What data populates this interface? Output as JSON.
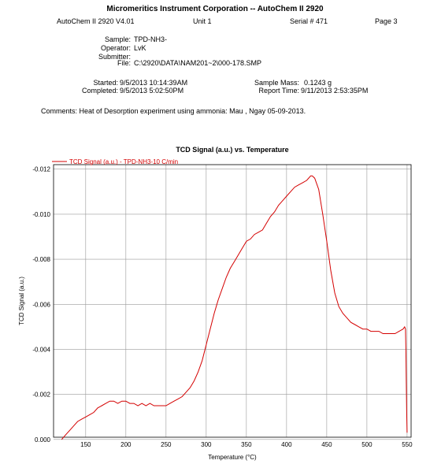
{
  "report": {
    "title": "Micromeritics Instrument Corporation -- AutoChem II 2920",
    "software": "AutoChem II 2920 V4.01",
    "unit": "Unit 1",
    "serial": "Serial # 471",
    "page": "Page 3"
  },
  "sample_info": {
    "sample_label": "Sample:",
    "sample_value": "TPD-NH3-",
    "operator_label": "Operator:",
    "operator_value": "LvK",
    "submitter_label": "Submitter:",
    "submitter_value": "",
    "file_label": "File:",
    "file_value": "C:\\2920\\DATA\\NAM201~2\\000-178.SMP"
  },
  "timing": {
    "started_label": "Started:",
    "started_value": "9/5/2013 10:14:39AM",
    "completed_label": "Completed:",
    "completed_value": "9/5/2013 5:02:50PM",
    "mass_label": "Sample Mass:",
    "mass_value": "0.1243 g",
    "report_label": "Report Time:",
    "report_value": "9/11/2013 2:53:35PM"
  },
  "comments": "Comments: Heat of Desorption experiment using ammonia: Mau , Ngay 05-09-2013.",
  "chart_data": {
    "type": "line",
    "title": "TCD Signal (a.u.) vs. Temperature",
    "xlabel": "Temperature (°C)",
    "ylabel": "TCD Signal (a.u.)",
    "xlim": [
      110,
      555
    ],
    "ylim": [
      0.0001,
      0.0122
    ],
    "y_reversed": true,
    "x_ticks": [
      150,
      200,
      250,
      300,
      350,
      400,
      450,
      500,
      550
    ],
    "y_ticks": [
      0.0,
      -0.002,
      -0.004,
      -0.006,
      -0.008,
      -0.01,
      -0.012
    ],
    "y_tick_labels": [
      "0.000",
      "-0.002",
      "-0.004",
      "-0.006",
      "-0.008",
      "-0.010",
      "-0.012"
    ],
    "grid": true,
    "legend_position": "top-left",
    "series": [
      {
        "name": "TCD Signal (a.u.) - TPD-NH3-10 C/min",
        "color": "#d40000",
        "x": [
          120,
          125,
          130,
          135,
          140,
          145,
          150,
          155,
          160,
          165,
          170,
          175,
          180,
          185,
          190,
          195,
          200,
          205,
          210,
          215,
          220,
          225,
          230,
          235,
          240,
          245,
          250,
          255,
          260,
          265,
          270,
          275,
          280,
          285,
          290,
          295,
          300,
          305,
          310,
          315,
          320,
          325,
          330,
          335,
          340,
          345,
          350,
          355,
          360,
          365,
          370,
          375,
          380,
          385,
          390,
          395,
          400,
          405,
          410,
          415,
          420,
          425,
          430,
          432,
          435,
          440,
          445,
          450,
          455,
          460,
          465,
          470,
          475,
          480,
          485,
          490,
          495,
          500,
          505,
          510,
          515,
          520,
          525,
          530,
          535,
          540,
          545,
          547,
          548,
          548.5,
          549,
          549.5,
          550
        ],
        "y": [
          0.0,
          -0.0002,
          -0.0004,
          -0.0006,
          -0.0008,
          -0.0009,
          -0.001,
          -0.0011,
          -0.0012,
          -0.0014,
          -0.0015,
          -0.0016,
          -0.0017,
          -0.0017,
          -0.0016,
          -0.0017,
          -0.0017,
          -0.0016,
          -0.0016,
          -0.0015,
          -0.0016,
          -0.0015,
          -0.0016,
          -0.0015,
          -0.0015,
          -0.0015,
          -0.0015,
          -0.0016,
          -0.0017,
          -0.0018,
          -0.0019,
          -0.0021,
          -0.0023,
          -0.0026,
          -0.003,
          -0.0035,
          -0.0042,
          -0.0049,
          -0.0056,
          -0.0062,
          -0.0067,
          -0.0072,
          -0.0076,
          -0.0079,
          -0.0082,
          -0.0085,
          -0.0088,
          -0.0089,
          -0.0091,
          -0.0092,
          -0.0093,
          -0.0096,
          -0.0099,
          -0.0101,
          -0.0104,
          -0.0106,
          -0.0108,
          -0.011,
          -0.0112,
          -0.0113,
          -0.0114,
          -0.0115,
          -0.0117,
          -0.0117,
          -0.0116,
          -0.0111,
          -0.01,
          -0.0088,
          -0.0075,
          -0.0065,
          -0.0059,
          -0.0056,
          -0.0054,
          -0.0052,
          -0.0051,
          -0.005,
          -0.0049,
          -0.0049,
          -0.0048,
          -0.0048,
          -0.0048,
          -0.0047,
          -0.0047,
          -0.0047,
          -0.0047,
          -0.0048,
          -0.0049,
          -0.005,
          -0.0049,
          -0.004,
          -0.0025,
          -0.0012,
          -0.0003
        ]
      }
    ]
  }
}
